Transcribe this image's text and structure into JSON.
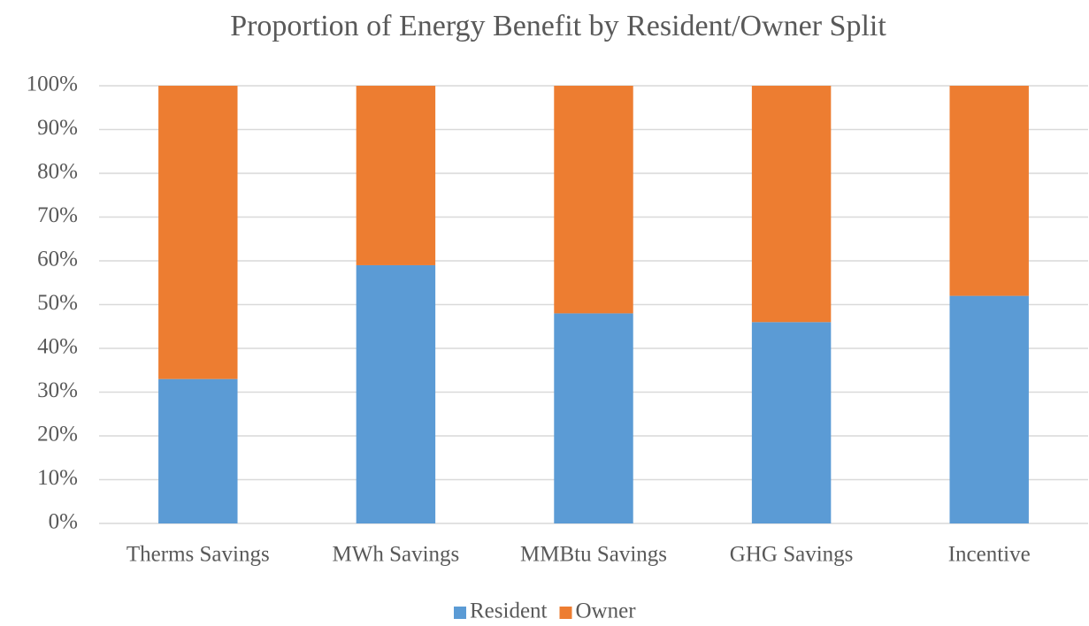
{
  "chart_data": {
    "type": "bar",
    "stacked": true,
    "title": "Proportion of Energy Benefit by Resident/Owner Split",
    "categories": [
      "Therms Savings",
      "MWh Savings",
      "MMBtu Savings",
      "GHG Savings",
      "Incentive"
    ],
    "series": [
      {
        "name": "Resident",
        "color": "#5b9bd5",
        "values": [
          33,
          59,
          48,
          46,
          52
        ]
      },
      {
        "name": "Owner",
        "color": "#ed7d31",
        "values": [
          67,
          41,
          52,
          54,
          48
        ]
      }
    ],
    "ylim": [
      0,
      100
    ],
    "yticks": [
      {
        "value": 0,
        "label": "0%"
      },
      {
        "value": 10,
        "label": "10%"
      },
      {
        "value": 20,
        "label": "20%"
      },
      {
        "value": 30,
        "label": "30%"
      },
      {
        "value": 40,
        "label": "40%"
      },
      {
        "value": 50,
        "label": "50%"
      },
      {
        "value": 60,
        "label": "60%"
      },
      {
        "value": 70,
        "label": "70%"
      },
      {
        "value": 80,
        "label": "80%"
      },
      {
        "value": 90,
        "label": "90%"
      },
      {
        "value": 100,
        "label": "100%"
      }
    ],
    "grid": true,
    "legend": "bottom"
  }
}
